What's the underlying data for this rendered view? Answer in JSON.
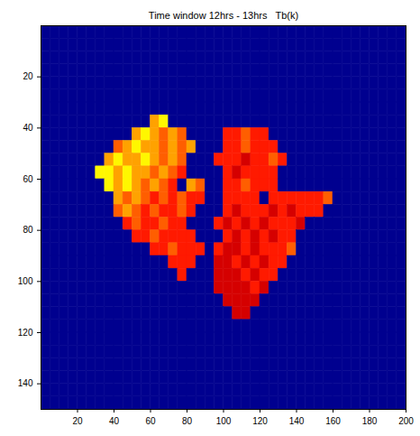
{
  "chart_data": {
    "type": "heatmap",
    "title": "Time window 12hrs - 13hrs   Tb(k)",
    "xlim": [
      0,
      200
    ],
    "ylim": [
      0,
      150
    ],
    "xticks": [
      20,
      40,
      60,
      80,
      100,
      120,
      140,
      160,
      180,
      200
    ],
    "yticks": [
      20,
      40,
      60,
      80,
      100,
      120,
      140
    ],
    "zlim": [
      0,
      300
    ],
    "z": [
      [
        0,
        0,
        0,
        0,
        0,
        0,
        0,
        0,
        0,
        0,
        0,
        0,
        0,
        0,
        0,
        0,
        0,
        0,
        0,
        0,
        0,
        0,
        0,
        0,
        0,
        0,
        0,
        0,
        0,
        0,
        0,
        0,
        0,
        0,
        0,
        0,
        0,
        0,
        0,
        0
      ],
      [
        0,
        0,
        0,
        0,
        0,
        0,
        0,
        0,
        0,
        0,
        0,
        0,
        0,
        0,
        0,
        0,
        0,
        0,
        0,
        0,
        0,
        0,
        0,
        0,
        0,
        0,
        0,
        0,
        0,
        0,
        0,
        0,
        0,
        0,
        0,
        0,
        0,
        0,
        0,
        0
      ],
      [
        0,
        0,
        0,
        0,
        0,
        0,
        0,
        0,
        0,
        0,
        0,
        0,
        0,
        0,
        0,
        0,
        0,
        0,
        0,
        0,
        0,
        0,
        0,
        0,
        0,
        0,
        0,
        0,
        0,
        0,
        0,
        0,
        0,
        0,
        0,
        0,
        0,
        0,
        0,
        0
      ],
      [
        0,
        0,
        0,
        0,
        0,
        0,
        0,
        0,
        0,
        0,
        0,
        0,
        0,
        0,
        0,
        0,
        0,
        0,
        0,
        0,
        0,
        0,
        0,
        0,
        0,
        0,
        0,
        0,
        0,
        0,
        0,
        0,
        0,
        0,
        0,
        0,
        0,
        0,
        0,
        0
      ],
      [
        0,
        0,
        0,
        0,
        0,
        0,
        0,
        0,
        0,
        0,
        0,
        0,
        0,
        0,
        0,
        0,
        0,
        0,
        0,
        0,
        0,
        0,
        0,
        0,
        0,
        0,
        0,
        0,
        0,
        0,
        0,
        0,
        0,
        0,
        0,
        0,
        0,
        0,
        0,
        0
      ],
      [
        0,
        0,
        0,
        0,
        0,
        0,
        0,
        0,
        0,
        0,
        0,
        0,
        0,
        0,
        0,
        0,
        0,
        0,
        0,
        0,
        0,
        0,
        0,
        0,
        0,
        0,
        0,
        0,
        0,
        0,
        0,
        0,
        0,
        0,
        0,
        0,
        0,
        0,
        0,
        0
      ],
      [
        0,
        0,
        0,
        0,
        0,
        0,
        0,
        0,
        0,
        0,
        0,
        0,
        0,
        0,
        0,
        0,
        0,
        0,
        0,
        0,
        0,
        0,
        0,
        0,
        0,
        0,
        0,
        0,
        0,
        0,
        0,
        0,
        0,
        0,
        0,
        0,
        0,
        0,
        0,
        0
      ],
      [
        0,
        0,
        0,
        0,
        0,
        0,
        0,
        0,
        0,
        0,
        0,
        0,
        215,
        190,
        0,
        0,
        0,
        0,
        0,
        0,
        0,
        0,
        0,
        0,
        0,
        0,
        0,
        0,
        0,
        0,
        0,
        0,
        0,
        0,
        0,
        0,
        0,
        0,
        0,
        0
      ],
      [
        0,
        0,
        0,
        0,
        0,
        0,
        0,
        0,
        0,
        0,
        215,
        190,
        215,
        235,
        215,
        235,
        0,
        0,
        0,
        0,
        255,
        255,
        235,
        255,
        255,
        0,
        0,
        0,
        0,
        0,
        0,
        0,
        0,
        0,
        0,
        0,
        0,
        0,
        0,
        0
      ],
      [
        0,
        0,
        0,
        0,
        0,
        0,
        0,
        0,
        235,
        215,
        190,
        215,
        215,
        235,
        215,
        235,
        215,
        0,
        0,
        0,
        255,
        255,
        235,
        255,
        255,
        255,
        0,
        0,
        0,
        0,
        0,
        0,
        0,
        0,
        0,
        0,
        0,
        0,
        0,
        0
      ],
      [
        0,
        0,
        0,
        0,
        0,
        0,
        0,
        215,
        190,
        215,
        215,
        190,
        215,
        235,
        215,
        235,
        0,
        0,
        0,
        255,
        255,
        255,
        275,
        255,
        255,
        235,
        255,
        0,
        0,
        0,
        0,
        0,
        0,
        0,
        0,
        0,
        0,
        0,
        0,
        0
      ],
      [
        0,
        0,
        0,
        0,
        0,
        0,
        190,
        190,
        215,
        190,
        215,
        215,
        235,
        215,
        235,
        255,
        0,
        0,
        0,
        0,
        255,
        275,
        255,
        255,
        255,
        255,
        0,
        0,
        0,
        0,
        0,
        0,
        0,
        0,
        0,
        0,
        0,
        0,
        0,
        0
      ],
      [
        0,
        0,
        0,
        0,
        0,
        0,
        0,
        190,
        215,
        190,
        215,
        235,
        215,
        235,
        255,
        0,
        215,
        235,
        0,
        0,
        255,
        255,
        235,
        255,
        255,
        255,
        0,
        0,
        0,
        0,
        0,
        0,
        0,
        0,
        0,
        0,
        0,
        0,
        0,
        0
      ],
      [
        0,
        0,
        0,
        0,
        0,
        0,
        0,
        0,
        215,
        235,
        215,
        235,
        255,
        235,
        255,
        235,
        255,
        255,
        0,
        0,
        255,
        255,
        255,
        255,
        0,
        255,
        255,
        255,
        255,
        255,
        255,
        235,
        0,
        0,
        0,
        0,
        0,
        0,
        0,
        0
      ],
      [
        0,
        0,
        0,
        0,
        0,
        0,
        0,
        0,
        235,
        215,
        235,
        255,
        235,
        255,
        255,
        235,
        255,
        0,
        0,
        0,
        255,
        275,
        255,
        255,
        255,
        275,
        255,
        275,
        255,
        255,
        255,
        0,
        0,
        0,
        0,
        0,
        0,
        0,
        0,
        0
      ],
      [
        0,
        0,
        0,
        0,
        0,
        0,
        0,
        0,
        0,
        255,
        235,
        255,
        255,
        235,
        255,
        255,
        0,
        0,
        0,
        255,
        275,
        255,
        275,
        255,
        275,
        255,
        255,
        255,
        275,
        0,
        0,
        0,
        0,
        0,
        0,
        0,
        0,
        0,
        0,
        0
      ],
      [
        0,
        0,
        0,
        0,
        0,
        0,
        0,
        0,
        0,
        0,
        255,
        255,
        235,
        255,
        255,
        255,
        255,
        0,
        0,
        0,
        255,
        275,
        255,
        275,
        255,
        275,
        255,
        255,
        0,
        0,
        0,
        0,
        0,
        0,
        0,
        0,
        0,
        0,
        0,
        0
      ],
      [
        0,
        0,
        0,
        0,
        0,
        0,
        0,
        0,
        0,
        0,
        0,
        0,
        255,
        255,
        235,
        255,
        255,
        255,
        0,
        255,
        275,
        275,
        255,
        275,
        255,
        255,
        255,
        235,
        0,
        0,
        0,
        0,
        0,
        0,
        0,
        0,
        0,
        0,
        0,
        0
      ],
      [
        0,
        0,
        0,
        0,
        0,
        0,
        0,
        0,
        0,
        0,
        0,
        0,
        0,
        0,
        255,
        255,
        255,
        0,
        0,
        275,
        275,
        255,
        275,
        255,
        275,
        255,
        255,
        0,
        0,
        0,
        0,
        0,
        0,
        0,
        0,
        0,
        0,
        0,
        0,
        0
      ],
      [
        0,
        0,
        0,
        0,
        0,
        0,
        0,
        0,
        0,
        0,
        0,
        0,
        0,
        0,
        0,
        255,
        0,
        0,
        0,
        275,
        275,
        275,
        255,
        275,
        255,
        255,
        0,
        0,
        0,
        0,
        0,
        0,
        0,
        0,
        0,
        0,
        0,
        0,
        0,
        0
      ],
      [
        0,
        0,
        0,
        0,
        0,
        0,
        0,
        0,
        0,
        0,
        0,
        0,
        0,
        0,
        0,
        0,
        0,
        0,
        0,
        275,
        275,
        275,
        275,
        255,
        275,
        0,
        0,
        0,
        0,
        0,
        0,
        0,
        0,
        0,
        0,
        0,
        0,
        0,
        0,
        0
      ],
      [
        0,
        0,
        0,
        0,
        0,
        0,
        0,
        0,
        0,
        0,
        0,
        0,
        0,
        0,
        0,
        0,
        0,
        0,
        0,
        0,
        275,
        275,
        275,
        275,
        0,
        0,
        0,
        0,
        0,
        0,
        0,
        0,
        0,
        0,
        0,
        0,
        0,
        0,
        0,
        0
      ],
      [
        0,
        0,
        0,
        0,
        0,
        0,
        0,
        0,
        0,
        0,
        0,
        0,
        0,
        0,
        0,
        0,
        0,
        0,
        0,
        0,
        0,
        275,
        275,
        0,
        0,
        0,
        0,
        0,
        0,
        0,
        0,
        0,
        0,
        0,
        0,
        0,
        0,
        0,
        0,
        0
      ],
      [
        0,
        0,
        0,
        0,
        0,
        0,
        0,
        0,
        0,
        0,
        0,
        0,
        0,
        0,
        0,
        0,
        0,
        0,
        0,
        0,
        0,
        0,
        0,
        0,
        0,
        0,
        0,
        0,
        0,
        0,
        0,
        0,
        0,
        0,
        0,
        0,
        0,
        0,
        0,
        0
      ],
      [
        0,
        0,
        0,
        0,
        0,
        0,
        0,
        0,
        0,
        0,
        0,
        0,
        0,
        0,
        0,
        0,
        0,
        0,
        0,
        0,
        0,
        0,
        0,
        0,
        0,
        0,
        0,
        0,
        0,
        0,
        0,
        0,
        0,
        0,
        0,
        0,
        0,
        0,
        0,
        0
      ],
      [
        0,
        0,
        0,
        0,
        0,
        0,
        0,
        0,
        0,
        0,
        0,
        0,
        0,
        0,
        0,
        0,
        0,
        0,
        0,
        0,
        0,
        0,
        0,
        0,
        0,
        0,
        0,
        0,
        0,
        0,
        0,
        0,
        0,
        0,
        0,
        0,
        0,
        0,
        0,
        0
      ],
      [
        0,
        0,
        0,
        0,
        0,
        0,
        0,
        0,
        0,
        0,
        0,
        0,
        0,
        0,
        0,
        0,
        0,
        0,
        0,
        0,
        0,
        0,
        0,
        0,
        0,
        0,
        0,
        0,
        0,
        0,
        0,
        0,
        0,
        0,
        0,
        0,
        0,
        0,
        0,
        0
      ],
      [
        0,
        0,
        0,
        0,
        0,
        0,
        0,
        0,
        0,
        0,
        0,
        0,
        0,
        0,
        0,
        0,
        0,
        0,
        0,
        0,
        0,
        0,
        0,
        0,
        0,
        0,
        0,
        0,
        0,
        0,
        0,
        0,
        0,
        0,
        0,
        0,
        0,
        0,
        0,
        0
      ],
      [
        0,
        0,
        0,
        0,
        0,
        0,
        0,
        0,
        0,
        0,
        0,
        0,
        0,
        0,
        0,
        0,
        0,
        0,
        0,
        0,
        0,
        0,
        0,
        0,
        0,
        0,
        0,
        0,
        0,
        0,
        0,
        0,
        0,
        0,
        0,
        0,
        0,
        0,
        0,
        0
      ],
      [
        0,
        0,
        0,
        0,
        0,
        0,
        0,
        0,
        0,
        0,
        0,
        0,
        0,
        0,
        0,
        0,
        0,
        0,
        0,
        0,
        0,
        0,
        0,
        0,
        0,
        0,
        0,
        0,
        0,
        0,
        0,
        0,
        0,
        0,
        0,
        0,
        0,
        0,
        0,
        0
      ]
    ]
  }
}
